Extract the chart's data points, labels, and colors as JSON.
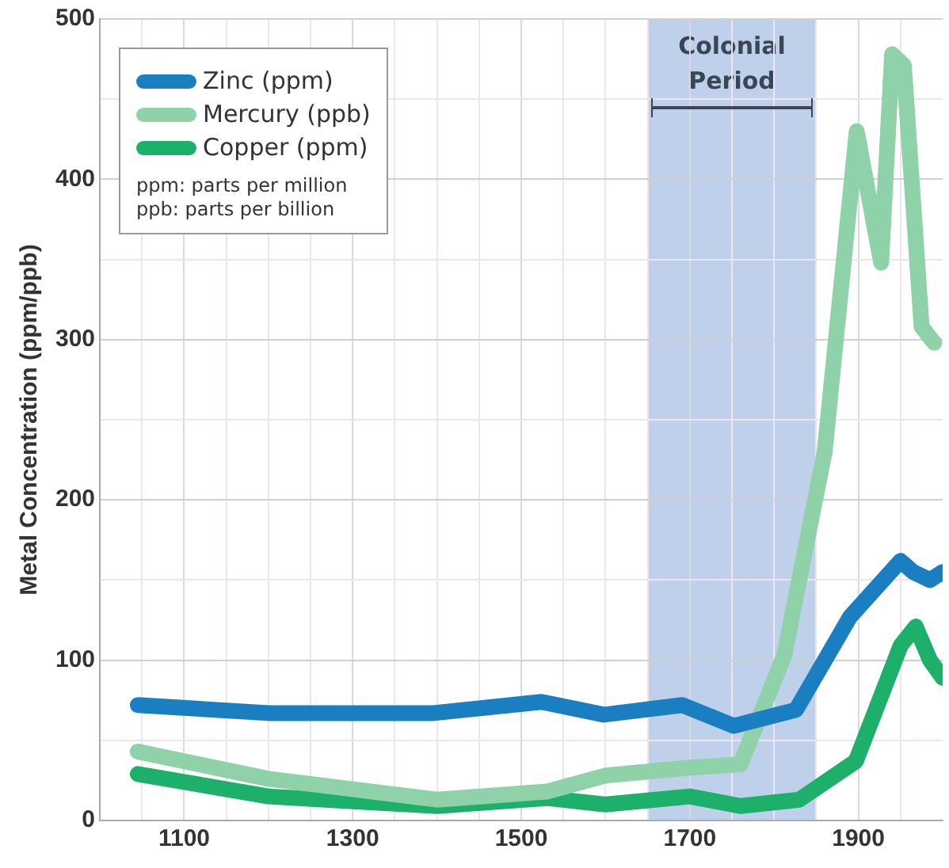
{
  "chart_data": {
    "type": "line",
    "ylabel": "Metal Concentration (ppm/ppb)",
    "xlim": [
      1000,
      2000
    ],
    "xticks": [
      {
        "value": 1050,
        "label": null
      },
      1100,
      {
        "value": 1150,
        "label": null
      },
      {
        "value": 1200,
        "label": null
      },
      {
        "value": 1250,
        "label": null
      },
      1300,
      {
        "value": 1350,
        "label": null
      },
      {
        "value": 1400,
        "label": null
      },
      {
        "value": 1450,
        "label": null
      },
      1500,
      {
        "value": 1550,
        "label": null
      },
      {
        "value": 1600,
        "label": null
      },
      {
        "value": 1650,
        "label": null
      },
      1700,
      {
        "value": 1750,
        "label": null
      },
      {
        "value": 1800,
        "label": null
      },
      {
        "value": 1850,
        "label": null
      },
      1900,
      {
        "value": 1950,
        "label": null
      }
    ],
    "ylim": [
      0,
      500
    ],
    "yticks": [
      0,
      {
        "value": 50,
        "label": null
      },
      100,
      {
        "value": 150,
        "label": null
      },
      200,
      {
        "value": 250,
        "label": null
      },
      300,
      {
        "value": 350,
        "label": null
      },
      400,
      {
        "value": 450,
        "label": null
      },
      500
    ],
    "grid": true,
    "legend": "top left",
    "marker": "none",
    "line_style": "solid",
    "series": [
      {
        "name": "Zinc (ppm)",
        "color": "#1a7fc1",
        "x": [
          1045,
          1200,
          1396,
          1524,
          1598,
          1691,
          1752,
          1826,
          1890,
          1950,
          1965,
          1985,
          2000
        ],
        "values": [
          72,
          67,
          67,
          74,
          66,
          72,
          59,
          69,
          127,
          162,
          155,
          150,
          155
        ]
      },
      {
        "name": "Mercury (ppb)",
        "color": "#8fd1a8",
        "x": [
          1045,
          1200,
          1400,
          1530,
          1600,
          1700,
          1760,
          1812,
          1860,
          1898,
          1927,
          1940,
          1954,
          1975,
          1990
        ],
        "values": [
          43,
          26,
          13,
          18,
          28,
          33,
          35,
          103,
          230,
          430,
          348,
          478,
          471,
          308,
          298
        ]
      },
      {
        "name": "Copper (ppm)",
        "color": "#1db06a",
        "x": [
          1045,
          1200,
          1400,
          1530,
          1600,
          1700,
          1760,
          1830,
          1897,
          1950,
          1968,
          1985,
          2000
        ],
        "values": [
          29,
          15,
          9,
          14,
          10,
          15,
          9,
          13,
          37,
          109,
          121,
          100,
          89
        ]
      }
    ],
    "bands": [
      {
        "axis": "x",
        "from": 1650,
        "to": 1850,
        "label": "Colonial Period",
        "color": "#b3c8e6"
      }
    ],
    "annotations": [
      "ppm: parts per million",
      "ppb: parts per billion"
    ]
  }
}
